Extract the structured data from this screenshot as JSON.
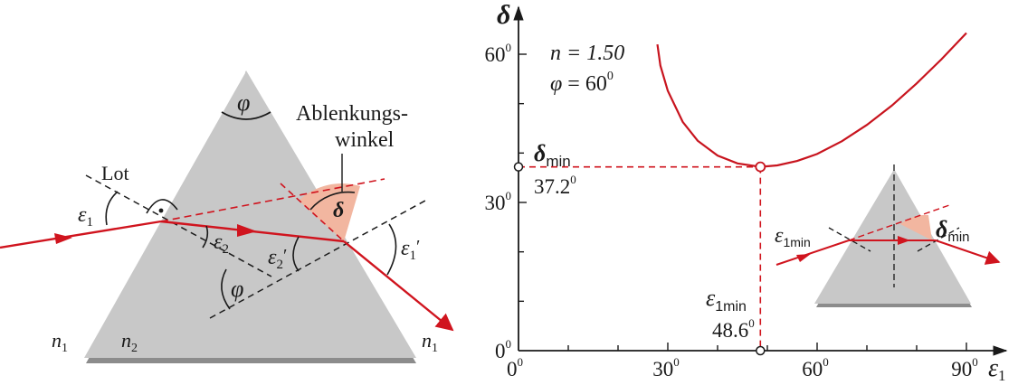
{
  "prism": {
    "apex_angle_label": "φ",
    "lot_label": "Lot",
    "eps1_label": "ε",
    "eps1_sub": "1",
    "eps2_label": "ε",
    "eps2_sub": "2",
    "eps2p_label": "ε",
    "eps2p_sub": "2",
    "eps2p_prime": "′",
    "eps1p_label": "ε",
    "eps1p_sub": "1",
    "eps1p_prime": "′",
    "phi_inner_label": "φ",
    "deviation_title_line1": "Ablenkungs-",
    "deviation_title_line2": "winkel",
    "delta_label": "δ",
    "n1_left": "n",
    "n1_left_sub": "1",
    "n2": "n",
    "n2_sub": "2",
    "n1_right": "n",
    "n1_right_sub": "1",
    "colors": {
      "ray": "#d0141e",
      "prism_fill": "#c8c8c8",
      "angle_fill": "#f2b6a0"
    }
  },
  "graph": {
    "ylabel": "δ",
    "xlabel": "ε",
    "xlabel_sub": "1",
    "params_n": "n = 1.50",
    "params_phi_sym": "φ",
    "params_phi_val": " = 60",
    "params_phi_sup": "0",
    "dmin_label": "δ",
    "dmin_sub": "min",
    "dmin_value": "37.2",
    "dmin_value_sup": "0",
    "e1min_label": "ε",
    "e1min_sub": "1min",
    "e1min_value": "48.6",
    "e1min_value_sup": "0",
    "inset_e1min": "ε",
    "inset_e1min_sub": "1min",
    "inset_dmin": "δ",
    "inset_dmin_sub": "min"
  },
  "chart_data": {
    "type": "line",
    "title": "",
    "xlabel": "ε1",
    "ylabel": "δ",
    "xlim": [
      0,
      100
    ],
    "ylim": [
      0,
      65
    ],
    "x_ticks": [
      {
        "value": 0,
        "label": "0",
        "sup": "0"
      },
      {
        "value": 30,
        "label": "30",
        "sup": "0"
      },
      {
        "value": 60,
        "label": "60",
        "sup": "0"
      },
      {
        "value": 90,
        "label": "90",
        "sup": "0"
      }
    ],
    "y_ticks": [
      {
        "value": 0,
        "label": "0",
        "sup": "0"
      },
      {
        "value": 30,
        "label": "30",
        "sup": "0"
      },
      {
        "value": 60,
        "label": "60",
        "sup": "0"
      }
    ],
    "series": [
      {
        "x": [
          27.9,
          28.5,
          30,
          33,
          36,
          40,
          44,
          48.6,
          52,
          56,
          60,
          65,
          70,
          75,
          80,
          85,
          90
        ],
        "values": [
          62.0,
          57.7,
          52.6,
          46.3,
          42.5,
          39.5,
          37.9,
          37.2,
          37.5,
          38.4,
          39.8,
          42.4,
          45.7,
          49.6,
          54.1,
          59.0,
          64.3
        ]
      }
    ],
    "minimum": {
      "x": 48.6,
      "y": 37.2
    },
    "grid": false
  }
}
